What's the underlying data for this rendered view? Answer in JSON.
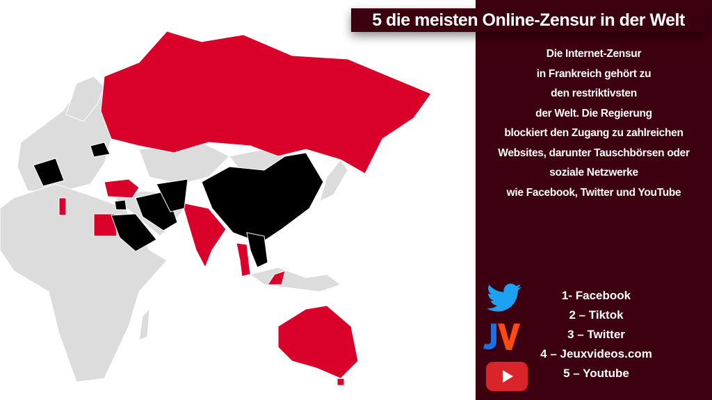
{
  "title": "5 die meisten Online-Zensur in der Welt",
  "description": [
    "Die Internet-Zensur",
    "in Frankreich gehört zu",
    "den restriktivsten",
    "der Welt. Die Regierung",
    "blockiert den Zugang zu zahlreichen",
    "Websites, darunter Tauschbörsen oder",
    "soziale Netzwerke",
    "wie Facebook, Twitter und YouTube"
  ],
  "ranking": [
    "1- Facebook",
    "2 – Tiktok",
    "3 – Twitter",
    "4 – Jeuxvideos.com",
    "5 – Youtube"
  ],
  "icons": [
    "twitter-icon",
    "jeuxvideos-logo-icon",
    "youtube-icon"
  ],
  "colors": {
    "panel": "#3d0010",
    "censored_red": "#d9002a",
    "most_censored_black": "#000000",
    "other_gray": "#dcdcdc"
  }
}
